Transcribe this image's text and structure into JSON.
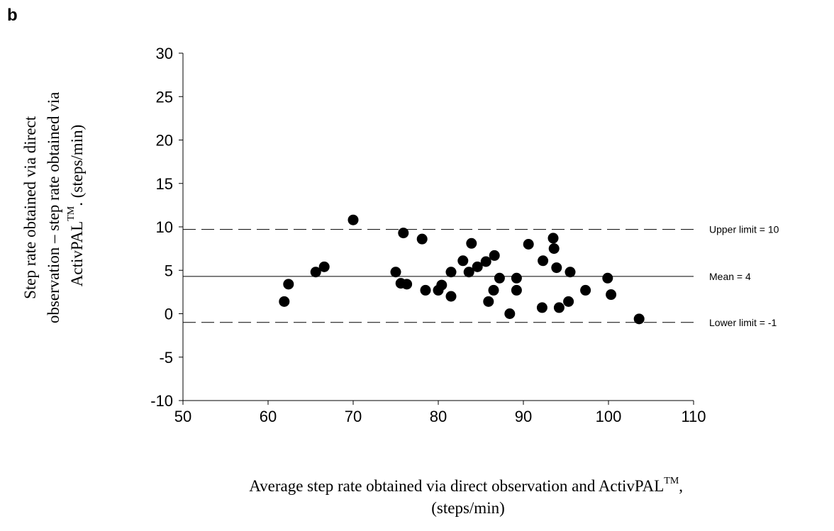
{
  "panel_label": "b",
  "chart_data": {
    "type": "scatter",
    "xlabel_lines": [
      "Average step rate obtained via direct observation and ActivPAL",
      "(steps/min)"
    ],
    "xlabel_sup": "TM",
    "xlabel_suffix": ",",
    "ylabel_lines": [
      "Step rate obtained via direct",
      "observation – step rate obtained via",
      "ActivPAL"
    ],
    "ylabel_sup": "TM",
    "ylabel_suffix": ". (steps/min)",
    "xlim": [
      50,
      110
    ],
    "ylim": [
      -10,
      30
    ],
    "xticks": [
      50,
      60,
      70,
      80,
      90,
      100,
      110
    ],
    "yticks": [
      -10,
      -5,
      0,
      5,
      10,
      15,
      20,
      25,
      30
    ],
    "grid": false,
    "reference_lines": [
      {
        "label": "Upper limit = 10",
        "y": 9.7,
        "style": "dashed"
      },
      {
        "label": "Mean = 4",
        "y": 4.3,
        "style": "solid"
      },
      {
        "label": "Lower limit = -1",
        "y": -1.0,
        "style": "dashed"
      }
    ],
    "points": [
      {
        "x": 61.9,
        "y": 1.4
      },
      {
        "x": 62.4,
        "y": 3.4
      },
      {
        "x": 65.6,
        "y": 4.8
      },
      {
        "x": 66.6,
        "y": 5.4
      },
      {
        "x": 70.0,
        "y": 10.8
      },
      {
        "x": 75.0,
        "y": 4.8
      },
      {
        "x": 75.6,
        "y": 3.5
      },
      {
        "x": 75.9,
        "y": 9.3
      },
      {
        "x": 76.3,
        "y": 3.4
      },
      {
        "x": 78.1,
        "y": 8.6
      },
      {
        "x": 78.5,
        "y": 2.7
      },
      {
        "x": 80.0,
        "y": 2.7
      },
      {
        "x": 80.4,
        "y": 3.3
      },
      {
        "x": 81.5,
        "y": 4.8
      },
      {
        "x": 81.5,
        "y": 2.0
      },
      {
        "x": 82.9,
        "y": 6.1
      },
      {
        "x": 83.6,
        "y": 4.8
      },
      {
        "x": 83.9,
        "y": 8.1
      },
      {
        "x": 84.6,
        "y": 5.4
      },
      {
        "x": 85.6,
        "y": 6.0
      },
      {
        "x": 85.9,
        "y": 1.4
      },
      {
        "x": 86.5,
        "y": 2.7
      },
      {
        "x": 86.6,
        "y": 6.7
      },
      {
        "x": 87.2,
        "y": 4.1
      },
      {
        "x": 88.4,
        "y": 0.0
      },
      {
        "x": 89.2,
        "y": 4.1
      },
      {
        "x": 89.2,
        "y": 2.7
      },
      {
        "x": 90.6,
        "y": 8.0
      },
      {
        "x": 92.2,
        "y": 0.7
      },
      {
        "x": 92.3,
        "y": 6.1
      },
      {
        "x": 93.5,
        "y": 8.7
      },
      {
        "x": 93.6,
        "y": 7.5
      },
      {
        "x": 93.9,
        "y": 5.3
      },
      {
        "x": 94.2,
        "y": 0.7
      },
      {
        "x": 95.3,
        "y": 1.4
      },
      {
        "x": 95.5,
        "y": 4.8
      },
      {
        "x": 97.3,
        "y": 2.7
      },
      {
        "x": 99.9,
        "y": 4.1
      },
      {
        "x": 100.3,
        "y": 2.2
      },
      {
        "x": 103.6,
        "y": -0.6
      }
    ]
  }
}
